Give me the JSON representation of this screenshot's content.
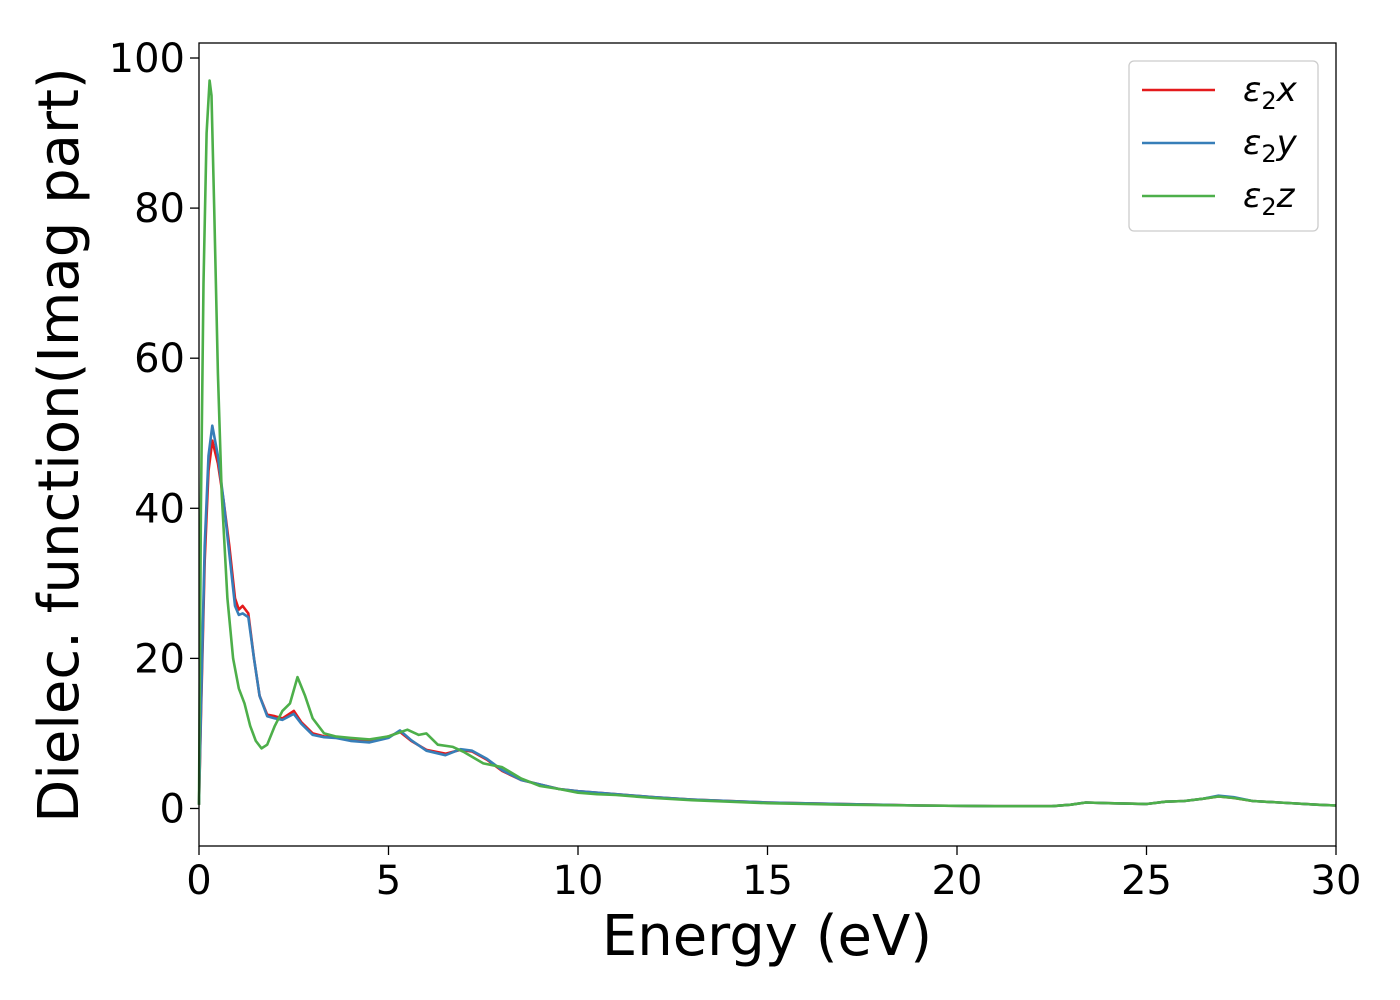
{
  "chart_data": {
    "type": "line",
    "title": "",
    "xlabel": "Energy (eV)",
    "ylabel": "Dielec. function(Imag part)",
    "xlim": [
      0,
      30
    ],
    "ylim": [
      -5,
      102
    ],
    "xticks": [
      0,
      5,
      10,
      15,
      20,
      25,
      30
    ],
    "yticks": [
      0,
      20,
      40,
      60,
      80,
      100
    ],
    "legend_position": "top-right",
    "grid": false,
    "series": [
      {
        "name": "ε2x",
        "sym": "ε",
        "sub": "2",
        "axis": "x",
        "color": "#e41a1c",
        "x": [
          0,
          0.05,
          0.15,
          0.25,
          0.35,
          0.5,
          0.65,
          0.8,
          0.95,
          1.05,
          1.15,
          1.3,
          1.45,
          1.6,
          1.8,
          2.0,
          2.2,
          2.5,
          2.7,
          3.0,
          3.3,
          3.6,
          4.0,
          4.5,
          5.0,
          5.3,
          5.6,
          6.0,
          6.5,
          6.9,
          7.2,
          7.6,
          8.0,
          8.5,
          9.0,
          9.5,
          10.0,
          10.5,
          11.0,
          12.0,
          13.0,
          14.0,
          15.0,
          17.0,
          19.0,
          21.0,
          22.5,
          23.0,
          23.4,
          24.0,
          25.0,
          25.5,
          26.0,
          26.5,
          26.9,
          27.3,
          27.8,
          28.5,
          29.5,
          30.0
        ],
        "y": [
          0.5,
          12,
          33,
          45,
          49,
          46,
          41,
          35,
          28,
          26.5,
          27,
          26,
          20,
          15,
          12.5,
          12.3,
          12,
          13,
          11.5,
          10,
          9.6,
          9.5,
          9.2,
          9.0,
          9.6,
          10.2,
          9.0,
          7.8,
          7.3,
          7.8,
          7.6,
          6.5,
          5.0,
          3.8,
          3.2,
          2.6,
          2.3,
          2.1,
          1.9,
          1.5,
          1.2,
          1.0,
          0.8,
          0.6,
          0.4,
          0.3,
          0.3,
          0.5,
          0.8,
          0.7,
          0.6,
          0.9,
          1.0,
          1.3,
          1.6,
          1.4,
          1.0,
          0.8,
          0.5,
          0.4
        ]
      },
      {
        "name": "ε2y",
        "sym": "ε",
        "sub": "2",
        "axis": "y",
        "color": "#377eb8",
        "x": [
          0,
          0.05,
          0.15,
          0.25,
          0.35,
          0.5,
          0.65,
          0.8,
          0.95,
          1.05,
          1.15,
          1.3,
          1.45,
          1.6,
          1.8,
          2.0,
          2.2,
          2.5,
          2.7,
          3.0,
          3.3,
          3.6,
          4.0,
          4.5,
          5.0,
          5.3,
          5.6,
          6.0,
          6.5,
          6.9,
          7.2,
          7.6,
          8.0,
          8.5,
          9.0,
          9.5,
          10.0,
          10.5,
          11.0,
          12.0,
          13.0,
          14.0,
          15.0,
          17.0,
          19.0,
          21.0,
          22.5,
          23.0,
          23.4,
          24.0,
          25.0,
          25.5,
          26.0,
          26.5,
          26.9,
          27.3,
          27.8,
          28.5,
          29.5,
          30.0
        ],
        "y": [
          0.5,
          13,
          35,
          47,
          51,
          47,
          41,
          34,
          27,
          25.8,
          26,
          25.5,
          20,
          15,
          12.3,
          12.0,
          11.8,
          12.6,
          11.3,
          9.8,
          9.5,
          9.4,
          9.0,
          8.8,
          9.4,
          10.4,
          9.1,
          7.7,
          7.1,
          7.9,
          7.7,
          6.6,
          5.1,
          3.8,
          3.2,
          2.6,
          2.3,
          2.1,
          1.9,
          1.5,
          1.2,
          1.0,
          0.8,
          0.6,
          0.4,
          0.3,
          0.3,
          0.5,
          0.8,
          0.7,
          0.6,
          0.9,
          1.0,
          1.3,
          1.7,
          1.5,
          1.0,
          0.8,
          0.5,
          0.4
        ]
      },
      {
        "name": "ε2z",
        "sym": "ε",
        "sub": "2",
        "axis": "z",
        "color": "#4daf4a",
        "x": [
          0,
          0.05,
          0.12,
          0.2,
          0.28,
          0.33,
          0.4,
          0.5,
          0.6,
          0.75,
          0.9,
          1.05,
          1.2,
          1.35,
          1.5,
          1.65,
          1.8,
          2.0,
          2.2,
          2.4,
          2.6,
          2.8,
          3.0,
          3.3,
          3.6,
          4.0,
          4.5,
          5.0,
          5.5,
          5.8,
          6.0,
          6.3,
          6.7,
          7.0,
          7.5,
          8.0,
          8.5,
          9.0,
          9.5,
          10.0,
          10.5,
          11.0,
          12.0,
          13.0,
          14.0,
          15.0,
          17.0,
          19.0,
          21.0,
          22.5,
          23.0,
          23.4,
          24.0,
          25.0,
          25.5,
          26.0,
          26.5,
          26.9,
          27.3,
          27.8,
          28.5,
          29.5,
          30.0
        ],
        "y": [
          0.5,
          40,
          70,
          90,
          97,
          95,
          80,
          58,
          42,
          28,
          20,
          16,
          14,
          11,
          9,
          8,
          8.5,
          11,
          13,
          14,
          17.5,
          15,
          12,
          10,
          9.6,
          9.4,
          9.2,
          9.6,
          10.5,
          9.8,
          10,
          8.5,
          8.2,
          7.5,
          6,
          5.5,
          4,
          3.0,
          2.6,
          2.1,
          1.9,
          1.8,
          1.4,
          1.1,
          0.9,
          0.7,
          0.5,
          0.4,
          0.3,
          0.3,
          0.5,
          0.8,
          0.7,
          0.6,
          0.9,
          1.0,
          1.3,
          1.6,
          1.4,
          1.0,
          0.8,
          0.5,
          0.4
        ]
      }
    ]
  }
}
